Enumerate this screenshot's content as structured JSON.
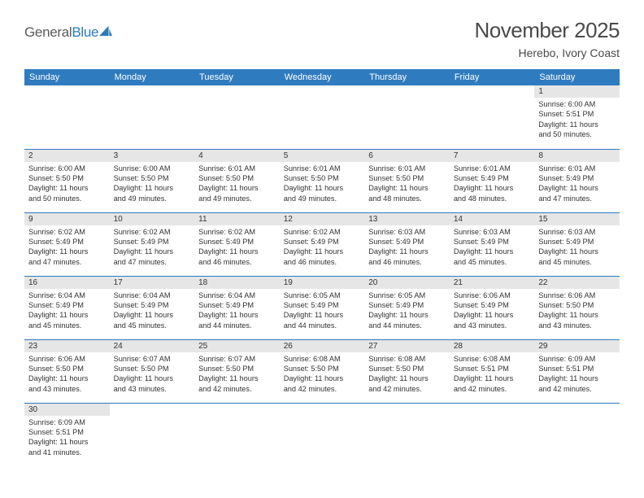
{
  "logo": {
    "text1": "General",
    "text2": "Blue"
  },
  "title": "November 2025",
  "location": "Herebo, Ivory Coast",
  "colors": {
    "header_bg": "#2f7bbf",
    "header_fg": "#ffffff",
    "daynum_bg": "#e6e6e6",
    "cell_border": "#2f7bbf",
    "sail": "#2a7ab8",
    "text_gray": "#4a4a4a"
  },
  "days_of_week": [
    "Sunday",
    "Monday",
    "Tuesday",
    "Wednesday",
    "Thursday",
    "Friday",
    "Saturday"
  ],
  "weeks": [
    [
      null,
      null,
      null,
      null,
      null,
      null,
      {
        "n": "1",
        "sr": "Sunrise: 6:00 AM",
        "ss": "Sunset: 5:51 PM",
        "d1": "Daylight: 11 hours",
        "d2": "and 50 minutes."
      }
    ],
    [
      {
        "n": "2",
        "sr": "Sunrise: 6:00 AM",
        "ss": "Sunset: 5:50 PM",
        "d1": "Daylight: 11 hours",
        "d2": "and 50 minutes."
      },
      {
        "n": "3",
        "sr": "Sunrise: 6:00 AM",
        "ss": "Sunset: 5:50 PM",
        "d1": "Daylight: 11 hours",
        "d2": "and 49 minutes."
      },
      {
        "n": "4",
        "sr": "Sunrise: 6:01 AM",
        "ss": "Sunset: 5:50 PM",
        "d1": "Daylight: 11 hours",
        "d2": "and 49 minutes."
      },
      {
        "n": "5",
        "sr": "Sunrise: 6:01 AM",
        "ss": "Sunset: 5:50 PM",
        "d1": "Daylight: 11 hours",
        "d2": "and 49 minutes."
      },
      {
        "n": "6",
        "sr": "Sunrise: 6:01 AM",
        "ss": "Sunset: 5:50 PM",
        "d1": "Daylight: 11 hours",
        "d2": "and 48 minutes."
      },
      {
        "n": "7",
        "sr": "Sunrise: 6:01 AM",
        "ss": "Sunset: 5:49 PM",
        "d1": "Daylight: 11 hours",
        "d2": "and 48 minutes."
      },
      {
        "n": "8",
        "sr": "Sunrise: 6:01 AM",
        "ss": "Sunset: 5:49 PM",
        "d1": "Daylight: 11 hours",
        "d2": "and 47 minutes."
      }
    ],
    [
      {
        "n": "9",
        "sr": "Sunrise: 6:02 AM",
        "ss": "Sunset: 5:49 PM",
        "d1": "Daylight: 11 hours",
        "d2": "and 47 minutes."
      },
      {
        "n": "10",
        "sr": "Sunrise: 6:02 AM",
        "ss": "Sunset: 5:49 PM",
        "d1": "Daylight: 11 hours",
        "d2": "and 47 minutes."
      },
      {
        "n": "11",
        "sr": "Sunrise: 6:02 AM",
        "ss": "Sunset: 5:49 PM",
        "d1": "Daylight: 11 hours",
        "d2": "and 46 minutes."
      },
      {
        "n": "12",
        "sr": "Sunrise: 6:02 AM",
        "ss": "Sunset: 5:49 PM",
        "d1": "Daylight: 11 hours",
        "d2": "and 46 minutes."
      },
      {
        "n": "13",
        "sr": "Sunrise: 6:03 AM",
        "ss": "Sunset: 5:49 PM",
        "d1": "Daylight: 11 hours",
        "d2": "and 46 minutes."
      },
      {
        "n": "14",
        "sr": "Sunrise: 6:03 AM",
        "ss": "Sunset: 5:49 PM",
        "d1": "Daylight: 11 hours",
        "d2": "and 45 minutes."
      },
      {
        "n": "15",
        "sr": "Sunrise: 6:03 AM",
        "ss": "Sunset: 5:49 PM",
        "d1": "Daylight: 11 hours",
        "d2": "and 45 minutes."
      }
    ],
    [
      {
        "n": "16",
        "sr": "Sunrise: 6:04 AM",
        "ss": "Sunset: 5:49 PM",
        "d1": "Daylight: 11 hours",
        "d2": "and 45 minutes."
      },
      {
        "n": "17",
        "sr": "Sunrise: 6:04 AM",
        "ss": "Sunset: 5:49 PM",
        "d1": "Daylight: 11 hours",
        "d2": "and 45 minutes."
      },
      {
        "n": "18",
        "sr": "Sunrise: 6:04 AM",
        "ss": "Sunset: 5:49 PM",
        "d1": "Daylight: 11 hours",
        "d2": "and 44 minutes."
      },
      {
        "n": "19",
        "sr": "Sunrise: 6:05 AM",
        "ss": "Sunset: 5:49 PM",
        "d1": "Daylight: 11 hours",
        "d2": "and 44 minutes."
      },
      {
        "n": "20",
        "sr": "Sunrise: 6:05 AM",
        "ss": "Sunset: 5:49 PM",
        "d1": "Daylight: 11 hours",
        "d2": "and 44 minutes."
      },
      {
        "n": "21",
        "sr": "Sunrise: 6:06 AM",
        "ss": "Sunset: 5:49 PM",
        "d1": "Daylight: 11 hours",
        "d2": "and 43 minutes."
      },
      {
        "n": "22",
        "sr": "Sunrise: 6:06 AM",
        "ss": "Sunset: 5:50 PM",
        "d1": "Daylight: 11 hours",
        "d2": "and 43 minutes."
      }
    ],
    [
      {
        "n": "23",
        "sr": "Sunrise: 6:06 AM",
        "ss": "Sunset: 5:50 PM",
        "d1": "Daylight: 11 hours",
        "d2": "and 43 minutes."
      },
      {
        "n": "24",
        "sr": "Sunrise: 6:07 AM",
        "ss": "Sunset: 5:50 PM",
        "d1": "Daylight: 11 hours",
        "d2": "and 43 minutes."
      },
      {
        "n": "25",
        "sr": "Sunrise: 6:07 AM",
        "ss": "Sunset: 5:50 PM",
        "d1": "Daylight: 11 hours",
        "d2": "and 42 minutes."
      },
      {
        "n": "26",
        "sr": "Sunrise: 6:08 AM",
        "ss": "Sunset: 5:50 PM",
        "d1": "Daylight: 11 hours",
        "d2": "and 42 minutes."
      },
      {
        "n": "27",
        "sr": "Sunrise: 6:08 AM",
        "ss": "Sunset: 5:50 PM",
        "d1": "Daylight: 11 hours",
        "d2": "and 42 minutes."
      },
      {
        "n": "28",
        "sr": "Sunrise: 6:08 AM",
        "ss": "Sunset: 5:51 PM",
        "d1": "Daylight: 11 hours",
        "d2": "and 42 minutes."
      },
      {
        "n": "29",
        "sr": "Sunrise: 6:09 AM",
        "ss": "Sunset: 5:51 PM",
        "d1": "Daylight: 11 hours",
        "d2": "and 42 minutes."
      }
    ],
    [
      {
        "n": "30",
        "sr": "Sunrise: 6:09 AM",
        "ss": "Sunset: 5:51 PM",
        "d1": "Daylight: 11 hours",
        "d2": "and 41 minutes."
      },
      null,
      null,
      null,
      null,
      null,
      null
    ]
  ]
}
